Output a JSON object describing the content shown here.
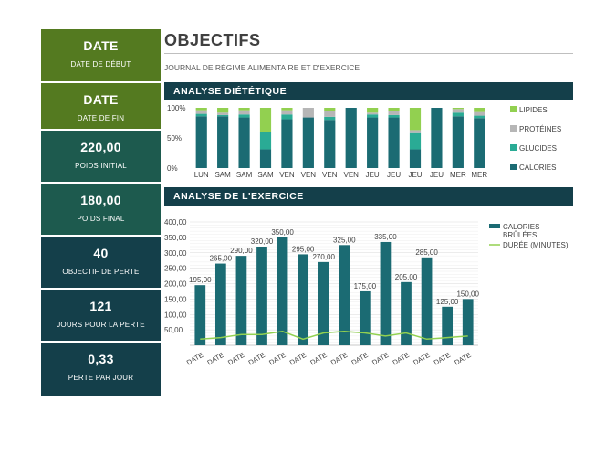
{
  "sidebar": {
    "cards": [
      {
        "value": "DATE",
        "label": "DATE DE DÉBUT"
      },
      {
        "value": "DATE",
        "label": "DATE DE FIN"
      },
      {
        "value": "220,00",
        "label": "POIDS INITIAL"
      },
      {
        "value": "180,00",
        "label": "POIDS FINAL"
      },
      {
        "value": "40",
        "label": "OBJECTIF DE PERTE"
      },
      {
        "value": "121",
        "label": "JOURS POUR LA PERTE"
      },
      {
        "value": "0,33",
        "label": "PERTE PAR JOUR"
      }
    ]
  },
  "header": {
    "title": "OBJECTIFS",
    "subtitle": "JOURNAL DE RÉGIME ALIMENTAIRE ET D'EXERCICE"
  },
  "sections": {
    "diet_title": "ANALYSE DIÉTÉTIQUE",
    "exercise_title": "ANALYSE DE L'EXERCICE"
  },
  "colors": {
    "calories": "#1b6b73",
    "glucides": "#2aab95",
    "proteines": "#b6b6b6",
    "lipides": "#92d050",
    "line": "#92d050",
    "bar": "#1b6b73",
    "band": "#143f4a",
    "card_green": "#547a20",
    "card_teal": "#1d5a4e",
    "card_dark": "#143f4a"
  },
  "chart_data": [
    {
      "type": "bar",
      "stacked": "percent",
      "title": "ANALYSE DIÉTÉTIQUE",
      "categories": [
        "LUN",
        "SAM",
        "SAM",
        "SAM",
        "VEN",
        "VEN",
        "VEN",
        "VEN",
        "JEU",
        "JEU",
        "JEU",
        "JEU",
        "MER",
        "MER"
      ],
      "yticks": [
        "100%",
        "50%",
        "0%"
      ],
      "ylim": [
        0,
        100
      ],
      "legend_position": "right",
      "series": [
        {
          "name": "CALORIES",
          "values": [
            86,
            86,
            84,
            31,
            81,
            84,
            80,
            100,
            84,
            84,
            31,
            100,
            86,
            83
          ]
        },
        {
          "name": "GLUCIDES",
          "values": [
            4,
            2,
            5,
            29,
            8,
            0,
            5,
            0,
            5,
            4,
            27,
            0,
            6,
            4
          ]
        },
        {
          "name": "PROTÉINES",
          "values": [
            6,
            4,
            7,
            0,
            7,
            16,
            10,
            0,
            3,
            6,
            5,
            0,
            6,
            6
          ]
        },
        {
          "name": "LIPIDES",
          "values": [
            4,
            8,
            4,
            40,
            4,
            0,
            5,
            0,
            8,
            6,
            37,
            0,
            2,
            7
          ]
        }
      ]
    },
    {
      "type": "bar",
      "title": "ANALYSE DE L'EXERCICE",
      "categories": [
        "DATE",
        "DATE",
        "DATE",
        "DATE",
        "DATE",
        "DATE",
        "DATE",
        "DATE",
        "DATE",
        "DATE",
        "DATE",
        "DATE",
        "DATE",
        "DATE"
      ],
      "ylim": [
        0,
        400
      ],
      "yticks": [
        "400,00",
        "350,00",
        "300,00",
        "250,00",
        "200,00",
        "150,00",
        "100,00",
        "50,00"
      ],
      "legend_position": "right",
      "series": [
        {
          "name": "CALORIES BRÛLÉES",
          "type": "bar",
          "values": [
            195,
            265,
            290,
            320,
            350,
            295,
            270,
            325,
            175,
            335,
            205,
            285,
            125,
            150
          ],
          "labels": [
            "195,00",
            "265,00",
            "290,00",
            "320,00",
            "350,00",
            "295,00",
            "270,00",
            "325,00",
            "175,00",
            "335,00",
            "205,00",
            "285,00",
            "125,00",
            "150,00"
          ]
        },
        {
          "name": "DURÉE (MINUTES)",
          "type": "line",
          "values": [
            20,
            25,
            35,
            35,
            45,
            20,
            40,
            45,
            40,
            30,
            40,
            20,
            25,
            30
          ]
        }
      ]
    }
  ]
}
